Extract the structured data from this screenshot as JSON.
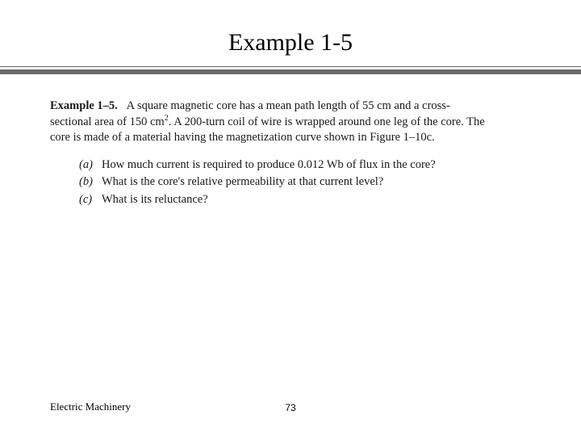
{
  "slide": {
    "title": "Example 1-5",
    "rule_color": "#6b6b6b",
    "problem": {
      "label": "Example 1–5.",
      "text_1": "A square magnetic core has a mean path length of 55 cm and a cross-",
      "text_2": "sectional area of 150 cm",
      "text_2_sup": "2",
      "text_3": ". A 200-turn coil of wire is wrapped around one leg of the core. The",
      "text_4": "core is made of a material having the magnetization curve shown in Figure 1–10c."
    },
    "parts": [
      {
        "label": "(a)",
        "text": "How much current is required to produce 0.012 Wb of flux in the core?"
      },
      {
        "label": "(b)",
        "text": "What is the core's relative permeability at that current level?"
      },
      {
        "label": "(c)",
        "text": "What is its reluctance?"
      }
    ],
    "footer_left": "Electric Machinery",
    "page_number": "73"
  }
}
